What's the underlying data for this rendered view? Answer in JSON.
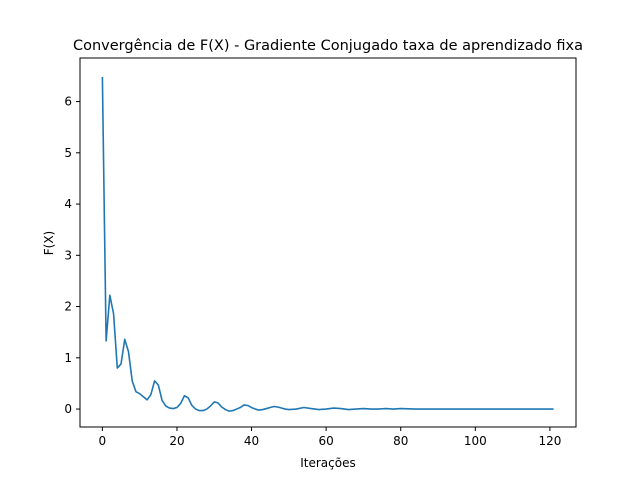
{
  "chart_data": {
    "type": "line",
    "title": "Convergência de F(X) - Gradiente Conjugado taxa de aprendizado fixa",
    "xlabel": "Iterações",
    "ylabel": "F(X)",
    "xlim": [
      -6,
      127
    ],
    "ylim": [
      -0.35,
      6.85
    ],
    "xticks": [
      0,
      20,
      40,
      60,
      80,
      100,
      120
    ],
    "yticks": [
      0,
      1,
      2,
      3,
      4,
      5,
      6
    ],
    "grid": false,
    "series": [
      {
        "color": "#1f77b4",
        "x": [
          0,
          1,
          2,
          3,
          4,
          5,
          6,
          7,
          8,
          9,
          10,
          11,
          12,
          13,
          14,
          15,
          16,
          17,
          18,
          19,
          20,
          21,
          22,
          23,
          24,
          25,
          26,
          27,
          28,
          29,
          30,
          31,
          32,
          33,
          34,
          35,
          36,
          37,
          38,
          39,
          40,
          41,
          42,
          43,
          44,
          45,
          46,
          47,
          48,
          49,
          50,
          52,
          54,
          56,
          58,
          60,
          62,
          64,
          66,
          68,
          70,
          72,
          74,
          76,
          78,
          80,
          84,
          88,
          92,
          96,
          100,
          104,
          108,
          112,
          116,
          121
        ],
        "y": [
          6.48,
          1.33,
          2.22,
          1.86,
          0.8,
          0.88,
          1.36,
          1.12,
          0.55,
          0.34,
          0.3,
          0.24,
          0.18,
          0.28,
          0.55,
          0.47,
          0.17,
          0.06,
          0.02,
          0.01,
          0.03,
          0.11,
          0.26,
          0.22,
          0.07,
          0.0,
          -0.03,
          -0.03,
          0.0,
          0.06,
          0.14,
          0.12,
          0.04,
          -0.01,
          -0.04,
          -0.03,
          0.0,
          0.03,
          0.08,
          0.07,
          0.03,
          0.0,
          -0.02,
          -0.01,
          0.01,
          0.03,
          0.05,
          0.04,
          0.02,
          0.0,
          -0.01,
          0.0,
          0.03,
          0.01,
          -0.01,
          0.0,
          0.02,
          0.01,
          -0.01,
          0.0,
          0.01,
          0.0,
          0.0,
          0.01,
          0.0,
          0.01,
          0.0,
          0.0,
          0.0,
          0.0,
          0.0,
          0.0,
          0.0,
          0.0,
          0.0,
          0.0
        ]
      }
    ]
  }
}
